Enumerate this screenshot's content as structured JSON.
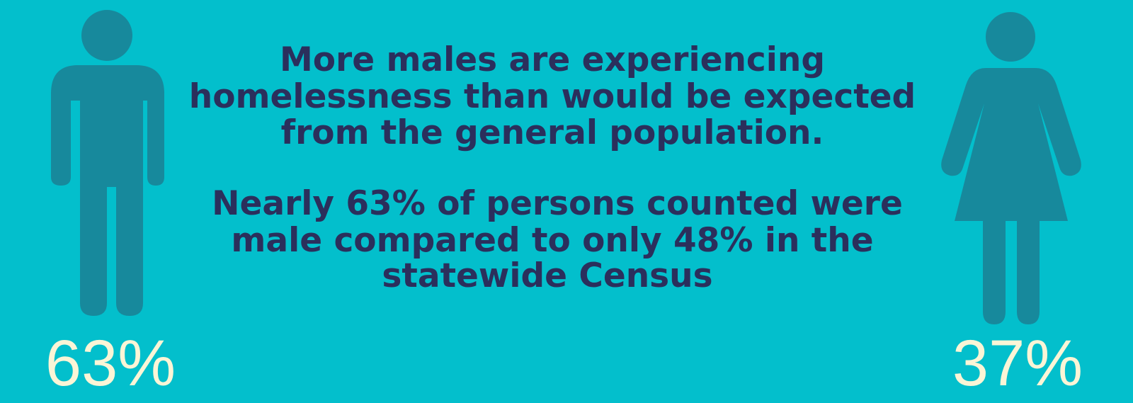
{
  "figures": [
    {
      "label": "63%"
    },
    {
      "label": "37%"
    }
  ],
  "headline": {
    "lines": [
      "More males are experiencing",
      "homelessness than would be expected",
      "from the general population."
    ]
  },
  "detail": {
    "lines": [
      "Nearly 63% of persons counted were",
      "male compared to only 48% in the",
      "statewide Census"
    ]
  }
}
